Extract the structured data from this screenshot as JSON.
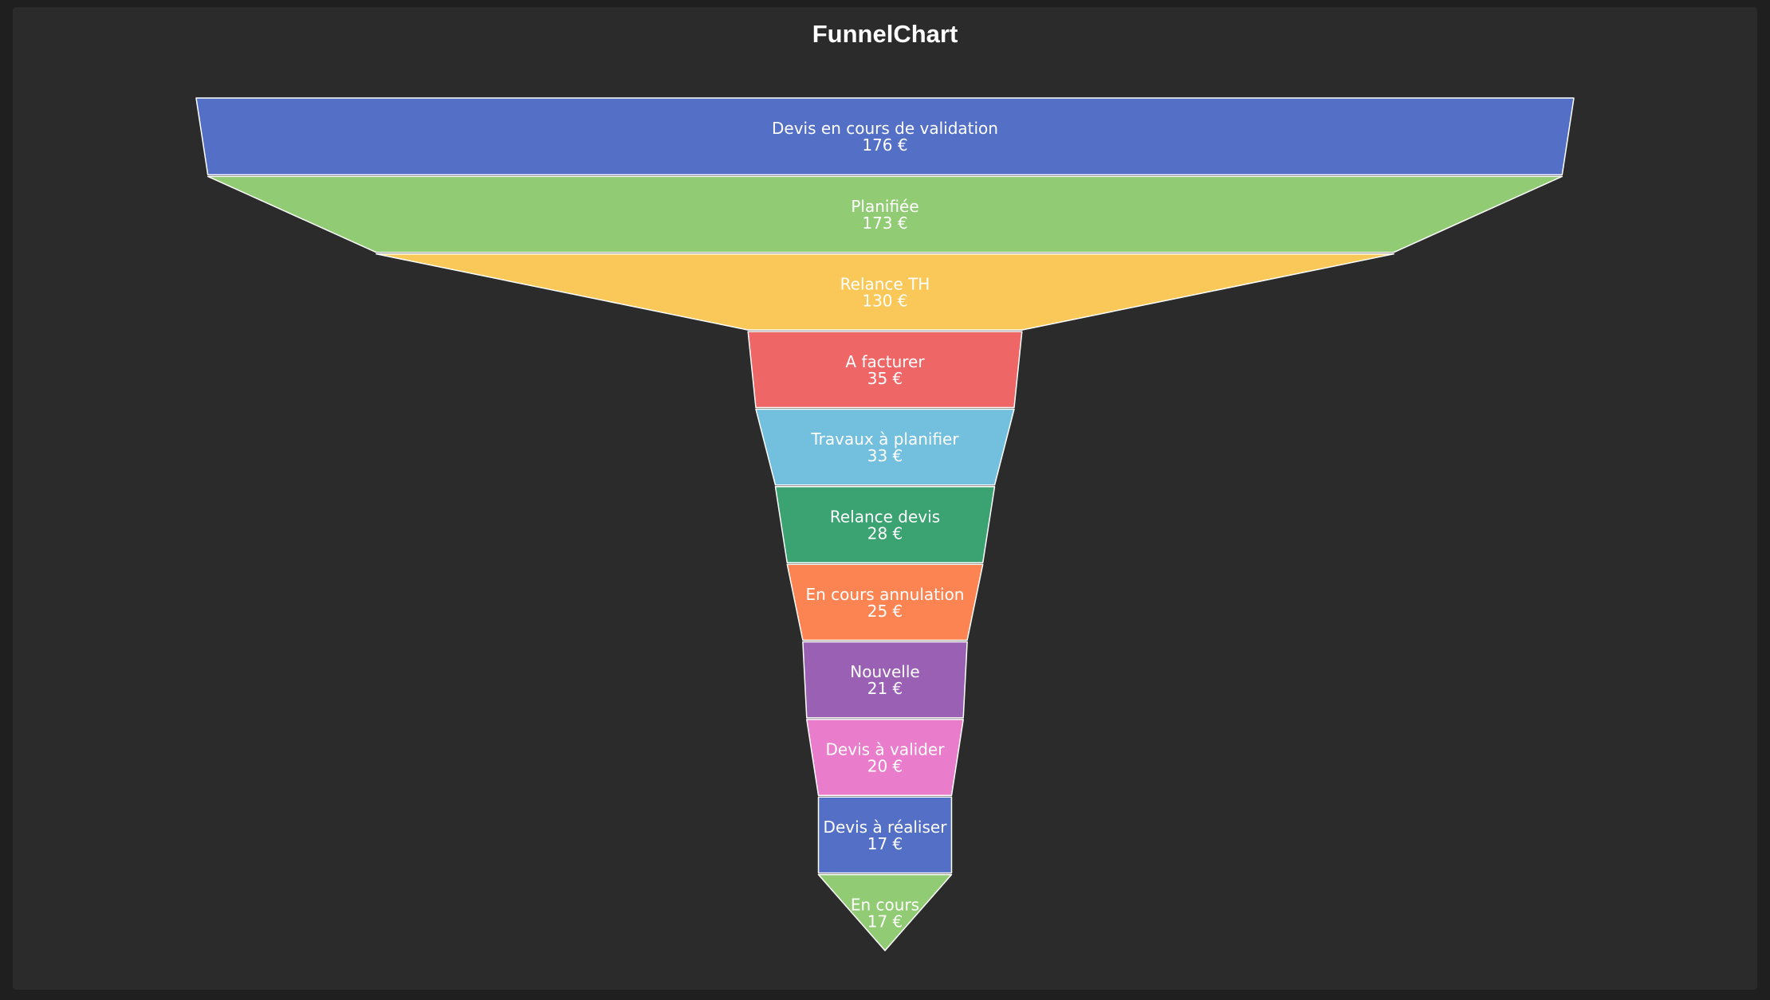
{
  "chart_data": {
    "type": "funnel",
    "title": "FunnelChart",
    "unit": "€",
    "segments": [
      {
        "name": "Devis en cours de validation",
        "value": 176,
        "value_label": "176 €",
        "color": "#5470c6"
      },
      {
        "name": "Planifiée",
        "value": 173,
        "value_label": "173 €",
        "color": "#91cc75"
      },
      {
        "name": "Relance TH",
        "value": 130,
        "value_label": "130 €",
        "color": "#fac858"
      },
      {
        "name": "A facturer",
        "value": 35,
        "value_label": "35 €",
        "color": "#ee6666"
      },
      {
        "name": "Travaux à planifier",
        "value": 33,
        "value_label": "33 €",
        "color": "#73c0de"
      },
      {
        "name": "Relance devis",
        "value": 28,
        "value_label": "28 €",
        "color": "#3ba272"
      },
      {
        "name": "En cours annulation",
        "value": 25,
        "value_label": "25 €",
        "color": "#fc8452"
      },
      {
        "name": "Nouvelle",
        "value": 21,
        "value_label": "21 €",
        "color": "#9a60b4"
      },
      {
        "name": "Devis à valider",
        "value": 20,
        "value_label": "20 €",
        "color": "#ea7ccc"
      },
      {
        "name": "Devis à réaliser",
        "value": 17,
        "value_label": "17 €",
        "color": "#5470c6"
      },
      {
        "name": "En cours",
        "value": 17,
        "value_label": "17 €",
        "color": "#91cc75"
      }
    ],
    "sort": "descending",
    "legend": "none",
    "grid": false
  },
  "colors": {
    "background": "#2b2b2b",
    "segment_border": "#ffffff",
    "label_text": "#ffffff"
  }
}
